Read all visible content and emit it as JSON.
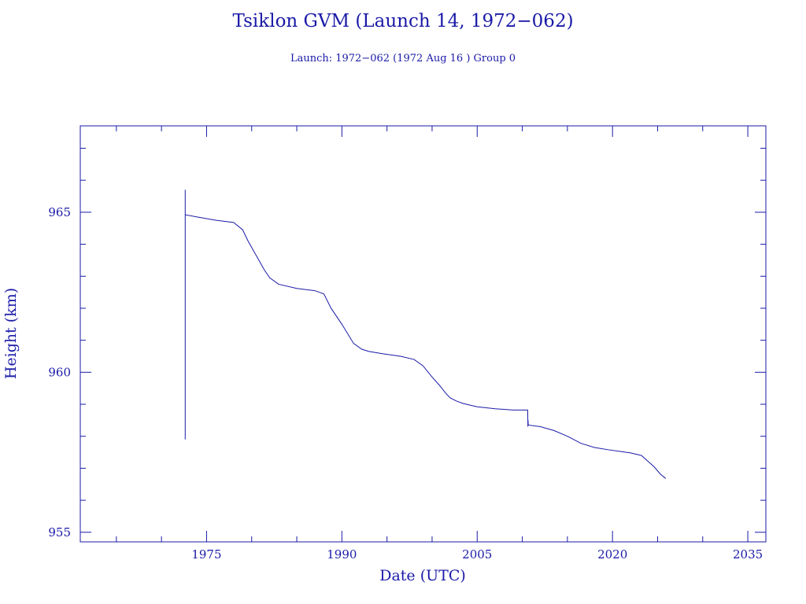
{
  "chart_data": {
    "type": "line",
    "title": "Tsiklon GVM (Launch 14, 1972−062)",
    "subtitle": "Launch: 1972−062  (1972 Aug 16 )  Group 0",
    "xlabel": "Date (UTC)",
    "ylabel": "Height (km)",
    "xlim": [
      1961,
      2037
    ],
    "ylim": [
      954.7,
      967.7
    ],
    "xticks": [
      1975,
      1990,
      2005,
      2020,
      2035
    ],
    "yticks": [
      955,
      960,
      965
    ],
    "grid": false,
    "colors": {
      "axes": "#1a1aa8",
      "series": "#1a1aa8"
    },
    "series": [
      {
        "name": "Height",
        "x": [
          1972.63,
          1972.63,
          1972.63,
          1972.65,
          1974.0,
          1976.0,
          1978.0,
          1979.0,
          1979.6,
          1980.2,
          1980.8,
          1981.4,
          1982.0,
          1983.0,
          1985.0,
          1987.0,
          1988.0,
          1988.8,
          1990.0,
          1991.3,
          1992.2,
          1993.0,
          1994.5,
          1996.5,
          1998.0,
          1999.0,
          2000.0,
          2000.8,
          2001.5,
          2002.0,
          2002.7,
          2003.5,
          2005.0,
          2007.0,
          2009.0,
          2010.6,
          2010.62,
          2010.64,
          2010.66,
          2012.0,
          2013.5,
          2015.0,
          2016.5,
          2018.0,
          2019.5,
          2021.0,
          2022.0,
          2023.2,
          2024.0,
          2024.6,
          2025.3,
          2025.9
        ],
        "y": [
          957.9,
          965.7,
          964.95,
          964.92,
          964.85,
          964.75,
          964.68,
          964.45,
          964.1,
          963.8,
          963.5,
          963.2,
          962.95,
          962.75,
          962.62,
          962.55,
          962.45,
          962.0,
          961.5,
          960.9,
          960.72,
          960.65,
          960.58,
          960.5,
          960.4,
          960.2,
          959.85,
          959.6,
          959.35,
          959.2,
          959.1,
          959.02,
          958.92,
          958.86,
          958.82,
          958.82,
          958.3,
          958.5,
          958.35,
          958.3,
          958.18,
          958.0,
          957.78,
          957.65,
          957.58,
          957.52,
          957.48,
          957.4,
          957.2,
          957.05,
          956.82,
          956.68
        ]
      }
    ]
  }
}
